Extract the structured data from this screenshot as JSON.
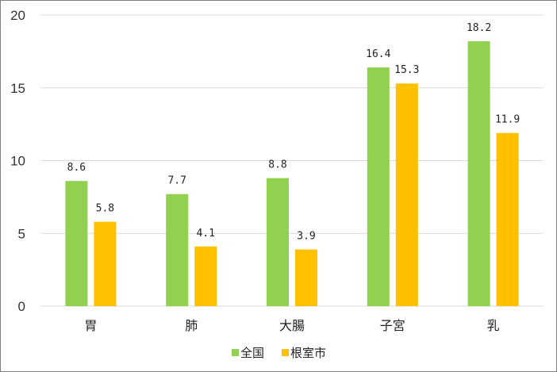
{
  "chart_data": {
    "type": "bar",
    "categories": [
      "胃",
      "肺",
      "大腸",
      "子宮",
      "乳"
    ],
    "series": [
      {
        "name": "全国",
        "color": "#92d050",
        "values": [
          8.6,
          7.7,
          8.8,
          16.4,
          18.2
        ],
        "labels": [
          "8.6",
          "7.7",
          "8.8",
          "16.4",
          "18.2"
        ]
      },
      {
        "name": "根室市",
        "color": "#ffc000",
        "values": [
          5.8,
          4.1,
          3.9,
          15.3,
          11.9
        ],
        "labels": [
          "5.8",
          "4.1",
          "3.9",
          "15.3",
          "11.9"
        ]
      }
    ],
    "ylim": [
      0,
      20
    ],
    "yticks": [
      0,
      5,
      10,
      15,
      20
    ],
    "grid": true,
    "legend_position": "bottom",
    "title": "",
    "xlabel": "",
    "ylabel": ""
  }
}
